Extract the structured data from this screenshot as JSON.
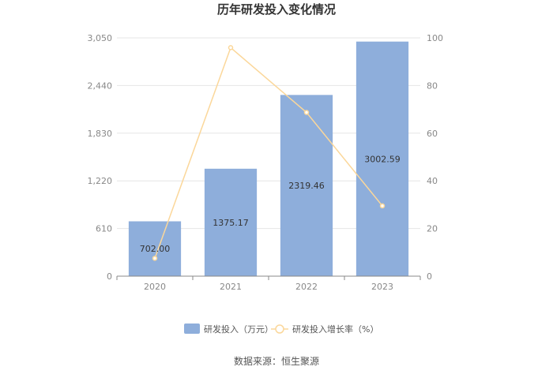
{
  "chart_data": {
    "type": "bar",
    "title": "历年研发投入变化情况",
    "categories": [
      "2020",
      "2021",
      "2022",
      "2023"
    ],
    "series": [
      {
        "name": "研发投入（万元）",
        "type": "bar",
        "axis": "left",
        "values": [
          702.0,
          1375.17,
          2319.46,
          3002.59
        ],
        "labels": [
          "702.00",
          "1375.17",
          "2319.46",
          "3002.59"
        ],
        "color": "#8eaedb"
      },
      {
        "name": "研发投入增长率（%）",
        "type": "line",
        "axis": "right",
        "values": [
          7.5,
          95.9,
          68.7,
          29.5
        ],
        "color": "#fbd79a"
      }
    ],
    "y_left": {
      "ylim": [
        0,
        3050
      ],
      "ticks": [
        "0",
        "610",
        "1,220",
        "1,830",
        "2,440",
        "3,050"
      ]
    },
    "y_right": {
      "ylim": [
        0,
        100
      ],
      "ticks": [
        "0",
        "20",
        "40",
        "60",
        "80",
        "100"
      ]
    },
    "grid": true,
    "legend_position": "bottom"
  },
  "source": "数据来源：恒生聚源"
}
